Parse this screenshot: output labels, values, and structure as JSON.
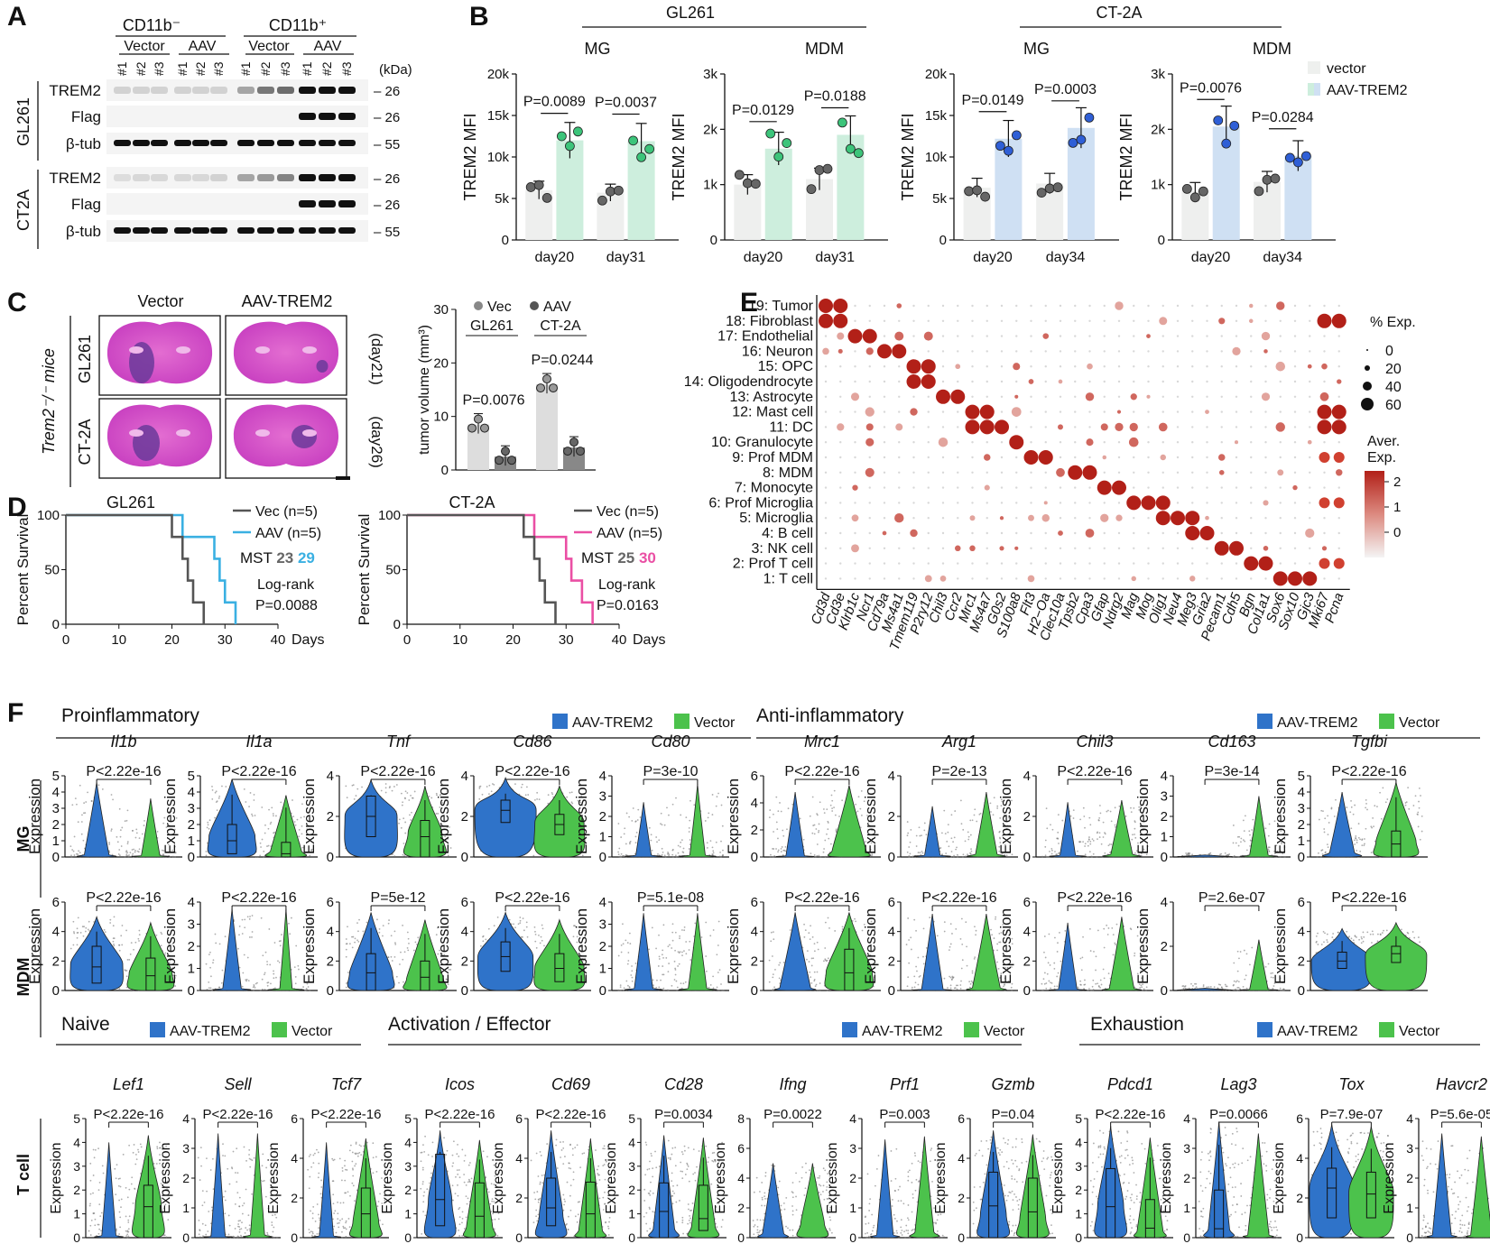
{
  "panel_labels": {
    "a": "A",
    "b": "B",
    "c": "C",
    "d": "D",
    "e": "E",
    "f": "F"
  },
  "panel_a": {
    "group_neg": "CD11b⁻",
    "group_pos": "CD11b⁺",
    "vector": "Vector",
    "aav": "AAV",
    "lanes": [
      "#1",
      "#2",
      "#3",
      "#1",
      "#2",
      "#3",
      "#1",
      "#2",
      "#3",
      "#1",
      "#2",
      "#3"
    ],
    "kda": "(kDa)",
    "blocks": [
      {
        "name": "GL261",
        "rows": [
          {
            "label": "TREM2",
            "mw": "26"
          },
          {
            "label": "Flag",
            "mw": "26"
          },
          {
            "label": "β-tub",
            "mw": "55"
          }
        ]
      },
      {
        "name": "CT2A",
        "rows": [
          {
            "label": "TREM2",
            "mw": "26"
          },
          {
            "label": "Flag",
            "mw": "26"
          },
          {
            "label": "β-tub",
            "mw": "55"
          }
        ]
      }
    ]
  },
  "panel_b": {
    "model_gl261": "GL261",
    "model_ct2a": "CT-2A",
    "ylabel": "TREM2 MFI",
    "legend": {
      "vector": "vector",
      "aav": "AAV-TREM2",
      "vector_color": "#eef0ee",
      "aav_color_gl": "#cdeedd",
      "aav_color_ct": "#cfe0f3"
    },
    "charts": [
      {
        "title": "MG",
        "ticks": [
          "0",
          "5k",
          "10k",
          "15k",
          "20k"
        ],
        "ymax": 20000,
        "days": [
          "day20",
          "day31"
        ],
        "bars": [
          6000,
          12000,
          5700,
          11900
        ],
        "p": [
          "P=0.0089",
          "P=0.0037"
        ],
        "color": "green"
      },
      {
        "title": "MDM",
        "ticks": [
          "0",
          "1k",
          "2k",
          "3k"
        ],
        "ymax": 3000,
        "days": [
          "day20",
          "day31"
        ],
        "bars": [
          1000,
          1650,
          1100,
          1900
        ],
        "p": [
          "P=0.0129",
          "P=0.0188"
        ],
        "color": "green"
      },
      {
        "title": "MG",
        "ticks": [
          "0",
          "5k",
          "10k",
          "15k",
          "20k"
        ],
        "ymax": 20000,
        "days": [
          "day20",
          "day34"
        ],
        "bars": [
          6300,
          12200,
          6800,
          13500
        ],
        "p": [
          "P=0.0149",
          "P=0.0003"
        ],
        "color": "blue"
      },
      {
        "title": "MDM",
        "ticks": [
          "0",
          "1k",
          "2k",
          "3k"
        ],
        "ymax": 3000,
        "days": [
          "day20",
          "day34"
        ],
        "bars": [
          880,
          2050,
          1050,
          1520
        ],
        "p": [
          "P=0.0076",
          "P=0.0284"
        ],
        "color": "blue"
      }
    ]
  },
  "panel_c": {
    "col_vector": "Vector",
    "col_aav": "AAV-TREM2",
    "mice": "Trem2⁻/⁻ mice",
    "rows": [
      {
        "model": "GL261",
        "day": "(day21)"
      },
      {
        "model": "CT-2A",
        "day": "(day26)"
      }
    ],
    "legend_vec": "Vec",
    "legend_aav": "AAV",
    "ylabel": "tumor volume (mm³)",
    "ticks": [
      "0",
      "10",
      "20",
      "30"
    ],
    "groups": [
      {
        "name": "GL261",
        "p": "P=0.0076",
        "vec": 8.5,
        "aav": 2.5
      },
      {
        "name": "CT-2A",
        "p": "P=0.0244",
        "vec": 16,
        "aav": 4.2
      }
    ]
  },
  "panel_d": {
    "ylabel": "Percent Survival",
    "xlabel": "Days",
    "xticks": [
      "0",
      "10",
      "20",
      "30",
      "40"
    ],
    "yticks": [
      "0",
      "50",
      "100"
    ],
    "plots": [
      {
        "title": "GL261",
        "vec": "Vec (n=5)",
        "aav": "AAV (n=5)",
        "mst": "MST",
        "mst_vec": "23",
        "mst_aav": "29",
        "test": "Log-rank",
        "p": "P=0.0088",
        "aav_color": "#3ab0e2"
      },
      {
        "title": "CT-2A",
        "vec": "Vec (n=5)",
        "aav": "AAV (n=5)",
        "mst": "MST",
        "mst_vec": "25",
        "mst_aav": "30",
        "test": "Log-rank",
        "p": "P=0.0163",
        "aav_color": "#ea4fa4"
      }
    ]
  },
  "panel_e": {
    "clusters": [
      "19: Tumor",
      "18: Fibroblast",
      "17: Endothelial",
      "16: Neuron",
      "15: OPC",
      "14: Oligodendrocyte",
      "13: Astrocyte",
      "12: Mast cell",
      "11: DC",
      "10: Granulocyte",
      "9: Prof MDM",
      "8: MDM",
      "7: Monocyte",
      "6: Prof Microglia",
      "5: Microglia",
      "4: B cell",
      "3: NK cell",
      "2: Prof T cell",
      "1: T cell"
    ],
    "genes": [
      "Cd3d",
      "Cd3e",
      "Klrb1c",
      "Ncr1",
      "Cd79a",
      "Ms4a1",
      "Tmem119",
      "P2ry12",
      "Chil3",
      "Ccr2",
      "Mrc1",
      "Ms4a7",
      "G0s2",
      "S100a8",
      "Flt3",
      "H2−Oa",
      "Clec10a",
      "Tpsb2",
      "Cpa3",
      "Gfap",
      "Ndrg2",
      "Mag",
      "Mog",
      "Olig1",
      "Neu4",
      "Meg3",
      "Gria2",
      "Pecam1",
      "Cdh5",
      "Bgn",
      "Col1a1",
      "Sox6",
      "Sox10",
      "Gjc3",
      "Mki67",
      "Pcna"
    ],
    "legend_pct": "% Exp.",
    "pct_values": [
      "0",
      "20",
      "40",
      "60"
    ],
    "legend_avg": "Aver. Exp.",
    "avg_values": [
      "2",
      "1",
      "0"
    ]
  },
  "panel_f": {
    "pro_title": "Proinflammatory",
    "anti_title": "Anti-inflammatory",
    "naive_title": "Naive",
    "act_title": "Activation / Effector",
    "exh_title": "Exhaustion",
    "legend_aav": "AAV-TREM2",
    "legend_vec": "Vector",
    "ylabel": "Expression",
    "row_mg": "MG",
    "row_mdm": "MDM",
    "row_t": "T cell",
    "mg_genes": [
      "Il1b",
      "Il1a",
      "Tnf",
      "Cd86",
      "Cd80",
      "Mrc1",
      "Arg1",
      "Chil3",
      "Cd163",
      "Tgfbi"
    ],
    "mg_p": [
      "P<2.22e-16",
      "P<2.22e-16",
      "P<2.22e-16",
      "P<2.22e-16",
      "P=3e-10",
      "P<2.22e-16",
      "P=2e-13",
      "P<2.22e-16",
      "P=3e-14",
      "P<2.22e-16"
    ],
    "mdm_p": [
      "P<2.22e-16",
      "P<2.22e-16",
      "P=5e-12",
      "P<2.22e-16",
      "P=5.1e-08",
      "P<2.22e-16",
      "P<2.22e-16",
      "P<2.22e-16",
      "P=2.6e-07",
      "P<2.22e-16"
    ],
    "t_genes": [
      "Lef1",
      "Sell",
      "Tcf7",
      "Icos",
      "Cd69",
      "Cd28",
      "Ifng",
      "Prf1",
      "Gzmb",
      "Pdcd1",
      "Lag3",
      "Tox",
      "Havcr2"
    ],
    "t_p": [
      "P<2.22e-16",
      "P<2.22e-16",
      "P<2.22e-16",
      "P<2.22e-16",
      "P<2.22e-16",
      "P=0.0034",
      "P=0.0022",
      "P=0.003",
      "P=0.04",
      "P<2.22e-16",
      "P=0.0066",
      "P=7.9e-07",
      "P=5.6e-05"
    ]
  },
  "colors": {
    "aav_blue": "#2f73c9",
    "vector_green": "#4cc24c",
    "dot_red": "#b22018",
    "bar_grey": "#e8e9e8",
    "cyan": "#3ab0e2",
    "magenta": "#ea4fa4",
    "pro_title": "#3a7cc8",
    "anti_title": "#a65dc8",
    "naive_title": "#3cb44b",
    "act_title": "#e0288c"
  }
}
